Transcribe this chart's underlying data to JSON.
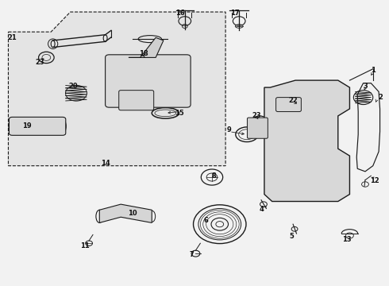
{
  "bg_color": "#f2f2f2",
  "line_color": "#1a1a1a",
  "label_color": "#111111",
  "box_fill": "#e8e8e8",
  "box_dash_fill": "#e4e4e4"
}
